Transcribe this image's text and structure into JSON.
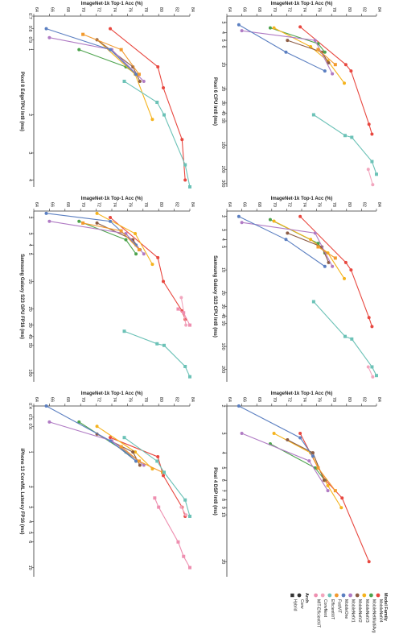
{
  "colors": {
    "MobileNetV4": "#e8473f",
    "MobileNetMultiAvg": "#4da34d",
    "MobileNetV3": "#f5b31d",
    "MobileNetV2": "#8c5c45",
    "MobileNetV1": "#b07bc4",
    "MobileOne": "#5b7fc1",
    "FastViT": "#f29a2e",
    "EfficientViT": "#6cc2b7",
    "ConvNext": "#f2a6be",
    "MIT-EfficientViT": "#ee8fb0"
  },
  "legend": {
    "family_title": "Model Family",
    "families": [
      "MobileNetV4",
      "MobileNetMultiAvg",
      "MobileNetV3",
      "MobileNetV2",
      "MobileNetV1",
      "MobileOne",
      "FastViT",
      "EfficientViT",
      "ConvNext",
      "MIT-EfficientViT"
    ],
    "arch_title": "Arch",
    "archs": [
      "Conv",
      "Hybrid"
    ]
  },
  "chart_data": [
    {
      "type": "line",
      "xlabel": "ImageNet-1k Top-1 Acc (%)",
      "ylabel": "Pixel 6 CPU Int8 (ms)",
      "xlim": [
        64,
        84
      ],
      "xticks": [
        "64",
        "66",
        "68",
        "70",
        "72",
        "74",
        "76",
        "78",
        "80",
        "82",
        "84"
      ],
      "ylim": [
        2.5,
        330
      ],
      "yscale": "log",
      "yticks": [
        "3",
        "4",
        "5",
        "6",
        "10",
        "20",
        "30",
        "40",
        "50",
        "100",
        "200",
        "300"
      ],
      "series": [
        {
          "name": "MobileNetV4",
          "x": [
            73.8,
            79.9,
            80.6,
            83.0,
            83.4
          ],
          "y": [
            3.4,
            10.0,
            12.0,
            55.0,
            73.0
          ]
        },
        {
          "name": "MobileNetMultiAvg",
          "x": [
            69.8,
            76.2,
            77.1
          ],
          "y": [
            3.5,
            5.5,
            7.0
          ]
        },
        {
          "name": "MobileNetV3",
          "x": [
            70.3,
            75.2,
            77.5,
            79.7
          ],
          "y": [
            3.5,
            6.0,
            9.0,
            17.0
          ]
        },
        {
          "name": "MobileNetV2",
          "x": [
            72.1,
            76.7,
            77.6
          ],
          "y": [
            5.0,
            7.0,
            9.5
          ]
        },
        {
          "name": "MobileNetV1",
          "x": [
            66.0,
            75.8,
            78.1
          ],
          "y": [
            3.8,
            5.0,
            13.0
          ]
        },
        {
          "name": "MobileOne",
          "x": [
            65.6,
            71.9,
            77.1
          ],
          "y": [
            3.2,
            7.0,
            12.0
          ]
        },
        {
          "name": "FastViT",
          "x": [
            76.2,
            78.5
          ],
          "y": [
            6.5,
            10.0
          ]
        },
        {
          "name": "EfficientViT",
          "x": [
            75.6,
            79.8,
            80.7,
            83.4,
            84.0
          ],
          "y": [
            42.0,
            76.0,
            80.0,
            160.0,
            230.0
          ]
        },
        {
          "name": "ConvNext",
          "x": [
            82.9,
            83.5
          ],
          "y": [
            200.0,
            310.0
          ]
        }
      ]
    },
    {
      "type": "line",
      "xlabel": "ImageNet-1k Top-1 Acc (%)",
      "ylabel": "Samsung Galaxy S23 CPU Int8 (ms)",
      "xlim": [
        64,
        84
      ],
      "xticks": [
        "64",
        "66",
        "68",
        "70",
        "72",
        "74",
        "76",
        "78",
        "80",
        "82",
        "84"
      ],
      "ylim": [
        1.7,
        290
      ],
      "yscale": "log",
      "yticks": [
        "2",
        "3",
        "4",
        "5",
        "10",
        "20",
        "30",
        "40",
        "50",
        "100",
        "200"
      ],
      "series": [
        {
          "name": "MobileNetV4",
          "x": [
            73.8,
            79.9,
            80.6,
            83.0,
            83.4
          ],
          "y": [
            2.0,
            8.0,
            10.0,
            42.0,
            55.0
          ]
        },
        {
          "name": "MobileNetMultiAvg",
          "x": [
            69.8,
            76.2,
            77.1
          ],
          "y": [
            2.2,
            4.5,
            6.0
          ]
        },
        {
          "name": "MobileNetV3",
          "x": [
            70.3,
            75.2,
            77.5,
            79.7
          ],
          "y": [
            2.3,
            4.0,
            6.0,
            13.0
          ]
        },
        {
          "name": "MobileNetV2",
          "x": [
            72.1,
            76.7,
            77.6
          ],
          "y": [
            3.3,
            5.0,
            8.0
          ]
        },
        {
          "name": "MobileNetV1",
          "x": [
            66.0,
            75.8,
            78.1
          ],
          "y": [
            2.4,
            3.3,
            9.0
          ]
        },
        {
          "name": "MobileOne",
          "x": [
            65.6,
            71.9,
            77.1
          ],
          "y": [
            2.0,
            4.0,
            9.0
          ]
        },
        {
          "name": "FastViT",
          "x": [
            76.2,
            78.5
          ],
          "y": [
            5.0,
            7.0
          ]
        },
        {
          "name": "EfficientViT",
          "x": [
            75.6,
            79.8,
            80.7,
            83.4,
            84.0
          ],
          "y": [
            26.0,
            74.0,
            80.0,
            185.0,
            240.0
          ]
        },
        {
          "name": "ConvNext",
          "x": [
            82.9,
            83.5
          ],
          "y": [
            185.0,
            250.0
          ]
        }
      ]
    },
    {
      "type": "line",
      "xlabel": "ImageNet-1k Top-1 Acc (%)",
      "ylabel": "Pixel 4 DSP Int8 (ms)",
      "xlim": [
        64,
        84
      ],
      "xticks": [
        "64",
        "66",
        "68",
        "70",
        "72",
        "74",
        "76",
        "78",
        "80",
        "82",
        "84"
      ],
      "ylim": [
        2.0,
        25
      ],
      "yscale": "log",
      "yticks": [
        "2",
        "3",
        "4",
        "5",
        "6",
        "7",
        "8",
        "9",
        "10",
        "20"
      ],
      "series": [
        {
          "name": "MobileNetV4",
          "x": [
            73.8,
            76.2,
            77.2,
            79.4,
            83.0
          ],
          "y": [
            3.0,
            5.0,
            6.0,
            7.8,
            20.0
          ]
        },
        {
          "name": "MobileNetMultiAvg",
          "x": [
            69.8,
            75.8,
            77.1
          ],
          "y": [
            3.5,
            5.0,
            6.0
          ]
        },
        {
          "name": "MobileNetV3",
          "x": [
            70.3,
            75.2,
            77.5,
            79.3
          ],
          "y": [
            3.0,
            4.0,
            6.5,
            9.0
          ]
        },
        {
          "name": "MobileNetV2",
          "x": [
            72.1,
            75.5,
            77.0
          ],
          "y": [
            3.3,
            4.0,
            6.0
          ]
        },
        {
          "name": "MobileNetV1",
          "x": [
            66.0,
            75.0,
            77.5
          ],
          "y": [
            3.0,
            4.5,
            7.0
          ]
        },
        {
          "name": "MobileOne",
          "x": [
            65.6,
            73.8,
            75.5
          ],
          "y": [
            2.0,
            3.2,
            4.2
          ]
        },
        {
          "name": "FastViT",
          "x": [
            76.2,
            78.5
          ],
          "y": [
            5.0,
            7.0
          ]
        }
      ]
    },
    {
      "type": "line",
      "xlabel": "ImageNet-1k Top-1 Acc (%)",
      "ylabel": "Pixel 8 EdgeTPU Int8 (ms)",
      "xlim": [
        64,
        84
      ],
      "xticks": [
        "64",
        "66",
        "68",
        "70",
        "72",
        "74",
        "76",
        "78",
        "80",
        "82",
        "84"
      ],
      "ylim": [
        0.7,
        4.3
      ],
      "yscale": "log",
      "yticks": [
        "0.7",
        "0.8",
        "0.9",
        "1",
        "2",
        "3",
        "4"
      ],
      "series": [
        {
          "name": "MobileNetV4",
          "x": [
            73.8,
            79.9,
            80.6,
            83.0,
            83.4
          ],
          "y": [
            0.8,
            1.2,
            1.5,
            2.6,
            4.0
          ]
        },
        {
          "name": "MobileNetMultiAvg",
          "x": [
            69.8,
            75.8,
            77.1
          ],
          "y": [
            1.0,
            1.2,
            1.3
          ]
        },
        {
          "name": "MobileNetV3",
          "x": [
            72.1,
            77.0,
            79.2
          ],
          "y": [
            0.9,
            1.3,
            2.1
          ]
        },
        {
          "name": "MobileNetV2",
          "x": [
            72.1,
            76.7,
            77.6
          ],
          "y": [
            0.9,
            1.2,
            1.4
          ]
        },
        {
          "name": "MobileNetV1",
          "x": [
            66.0,
            74.0,
            78.1
          ],
          "y": [
            0.88,
            1.0,
            1.4
          ]
        },
        {
          "name": "MobileOne",
          "x": [
            65.6,
            73.8,
            77.1
          ],
          "y": [
            0.8,
            1.0,
            1.3
          ]
        },
        {
          "name": "FastViT",
          "x": [
            70.3,
            75.2,
            77.5
          ],
          "y": [
            0.85,
            1.0,
            1.3
          ]
        },
        {
          "name": "EfficientViT",
          "x": [
            75.6,
            79.8,
            80.7,
            83.4,
            84.0
          ],
          "y": [
            1.4,
            1.75,
            2.0,
            3.4,
            4.3
          ]
        }
      ]
    },
    {
      "type": "line",
      "xlabel": "ImageNet-1k Top-1 Acc (%)",
      "ylabel": "Samsung Galaxy S23 GPU FP16 (ms)",
      "xlim": [
        64,
        84
      ],
      "xticks": [
        "64",
        "66",
        "68",
        "70",
        "72",
        "74",
        "76",
        "78",
        "80",
        "82",
        "84"
      ],
      "ylim": [
        1.7,
        125
      ],
      "yscale": "log",
      "yticks": [
        "2",
        "3",
        "4",
        "5",
        "10",
        "20",
        "30",
        "40",
        "50",
        "100"
      ],
      "series": [
        {
          "name": "MobileNetV4",
          "x": [
            73.8,
            79.9,
            80.6,
            83.0,
            83.4
          ],
          "y": [
            2.0,
            5.5,
            10.0,
            21.0,
            26.0
          ]
        },
        {
          "name": "MobileNetMultiAvg",
          "x": [
            69.8,
            75.8,
            77.1
          ],
          "y": [
            2.2,
            3.5,
            5.0
          ]
        },
        {
          "name": "MobileNetV3",
          "x": [
            72.1,
            77.0,
            79.2
          ],
          "y": [
            1.8,
            3.0,
            6.5
          ]
        },
        {
          "name": "MobileNetV2",
          "x": [
            72.1,
            76.7,
            77.6
          ],
          "y": [
            2.3,
            3.5,
            4.5
          ]
        },
        {
          "name": "MobileNetV1",
          "x": [
            66.0,
            75.8,
            78.1
          ],
          "y": [
            2.2,
            3.0,
            5.0
          ]
        },
        {
          "name": "MobileOne",
          "x": [
            65.6,
            73.8,
            77.1
          ],
          "y": [
            1.8,
            2.2,
            4.0
          ]
        },
        {
          "name": "FastViT",
          "x": [
            70.3,
            75.2,
            77.5
          ],
          "y": [
            2.3,
            2.8,
            4.5
          ]
        },
        {
          "name": "EfficientViT",
          "x": [
            75.6,
            79.8,
            80.7,
            83.4,
            84.0
          ],
          "y": [
            35.0,
            48.0,
            50.0,
            85.0,
            110.0
          ]
        },
        {
          "name": "ConvNext",
          "x": [
            82.9,
            83.5
          ],
          "y": [
            15.0,
            30.0
          ]
        },
        {
          "name": "MIT-EfficientViT",
          "x": [
            82.5,
            83.2,
            84.0
          ],
          "y": [
            20.0,
            22.0,
            30.0
          ]
        }
      ]
    },
    {
      "type": "line",
      "xlabel": "ImageNet-1k Top-1 Acc (%)",
      "ylabel": "iPhone 13 CoreML Latency FP16 (ms)",
      "xlim": [
        64,
        84
      ],
      "xticks": [
        "64",
        "66",
        "68",
        "70",
        "72",
        "74",
        "76",
        "78",
        "80",
        "82",
        "84"
      ],
      "ylim": [
        0.4,
        12
      ],
      "yscale": "log",
      "yticks": [
        "0.4",
        "0.5",
        "0.6",
        "1",
        "2",
        "3",
        "4",
        "5",
        "6",
        "10"
      ],
      "series": [
        {
          "name": "MobileNetV4",
          "x": [
            73.8,
            79.9,
            80.6,
            83.0,
            83.4
          ],
          "y": [
            0.75,
            1.1,
            1.6,
            3.0,
            3.6
          ]
        },
        {
          "name": "MobileNetMultiAvg",
          "x": [
            69.8,
            75.8,
            77.1
          ],
          "y": [
            0.55,
            1.0,
            1.2
          ]
        },
        {
          "name": "MobileNetV3",
          "x": [
            72.1,
            77.0,
            79.2
          ],
          "y": [
            0.6,
            1.0,
            1.4
          ]
        },
        {
          "name": "MobileNetV2",
          "x": [
            72.1,
            76.7,
            77.6
          ],
          "y": [
            0.7,
            1.0,
            1.3
          ]
        },
        {
          "name": "MobileNetV1",
          "x": [
            66.0,
            74.0,
            78.1
          ],
          "y": [
            0.55,
            0.8,
            1.3
          ]
        },
        {
          "name": "MobileOne",
          "x": [
            65.6,
            73.8,
            77.1
          ],
          "y": [
            0.4,
            0.8,
            1.2
          ]
        },
        {
          "name": "FastViT",
          "x": [
            75.2,
            77.5,
            80.5
          ],
          "y": [
            0.9,
            1.2,
            1.5
          ]
        },
        {
          "name": "EfficientViT",
          "x": [
            75.6,
            79.8,
            80.7,
            83.4,
            84.0
          ],
          "y": [
            0.75,
            1.2,
            1.5,
            2.6,
            3.6
          ]
        },
        {
          "name": "ConvNext",
          "x": [
            82.9,
            83.5
          ],
          "y": [
            3.0,
            3.5
          ]
        },
        {
          "name": "MIT-EfficientViT",
          "x": [
            79.5,
            80.0,
            82.5,
            83.2,
            84.0
          ],
          "y": [
            2.5,
            3.0,
            6.0,
            8.0,
            10.0
          ]
        }
      ]
    }
  ]
}
